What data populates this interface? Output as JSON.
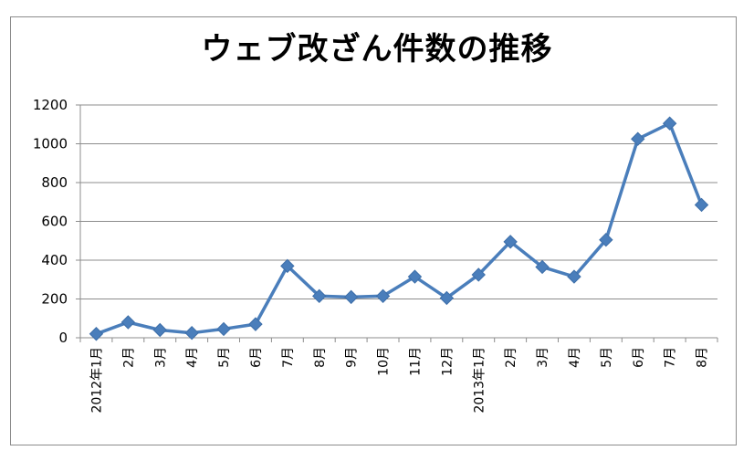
{
  "chart_data": {
    "type": "line",
    "title": "ウェブ改ざん件数の推移",
    "xlabel": "",
    "ylabel": "",
    "ylim": [
      0,
      1200
    ],
    "yticks": [
      0,
      200,
      400,
      600,
      800,
      1000,
      1200
    ],
    "grid": true,
    "legend": "none",
    "series_color": "#4a7ebb",
    "categories": [
      "2012年1月",
      "2月",
      "3月",
      "4月",
      "5月",
      "6月",
      "7月",
      "8月",
      "9月",
      "10月",
      "11月",
      "12月",
      "2013年1月",
      "2月",
      "3月",
      "4月",
      "5月",
      "6月",
      "7月",
      "8月"
    ],
    "values": [
      20,
      80,
      40,
      25,
      45,
      70,
      370,
      215,
      210,
      215,
      315,
      205,
      325,
      495,
      365,
      315,
      505,
      1025,
      1105,
      685
    ]
  }
}
